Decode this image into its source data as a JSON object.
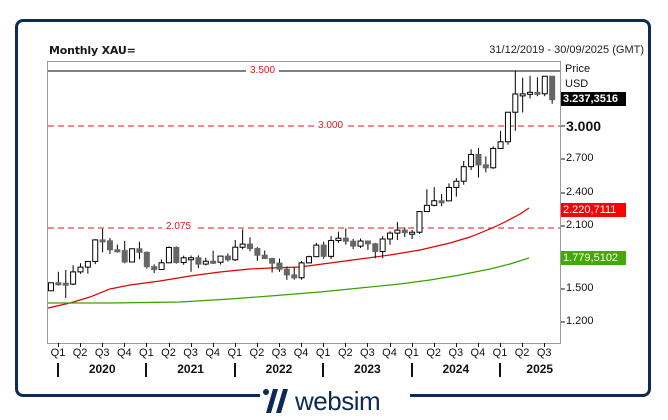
{
  "header": {
    "title": "Monthly XAU=",
    "date_range": "31/12/2019 - 30/09/2025 (GMT)"
  },
  "yaxis": {
    "title_line1": "Price",
    "title_line2": "USD",
    "ticks": [
      "3.000",
      "2.700",
      "2.400",
      "2.100",
      "1.500",
      "1.200"
    ]
  },
  "tags": {
    "last_price": "3.237,3516",
    "ma_red": "2.220,7111",
    "ma_green": "1.779,5102"
  },
  "reference_lines": {
    "l3500": "3.500",
    "l3000": "3.000",
    "l2075": "2.075"
  },
  "xaxis": {
    "quarters": [
      "Q1",
      "Q2",
      "Q3",
      "Q4",
      "Q1",
      "Q2",
      "Q3",
      "Q4",
      "Q1",
      "Q2",
      "Q3",
      "Q4",
      "Q1",
      "Q2",
      "Q3",
      "Q4",
      "Q1",
      "Q2",
      "Q3",
      "Q4",
      "Q1",
      "Q2",
      "Q3"
    ],
    "years": [
      "2020",
      "2021",
      "2022",
      "2023",
      "2024",
      "2025"
    ]
  },
  "colors": {
    "frame": "#0b2a55",
    "ref_red": "#e8141c",
    "ma_red": "#e00000",
    "ma_green": "#3aa000",
    "tag_black": "#000000",
    "tag_red": "#ff0000",
    "tag_green": "#44aa00",
    "bear_candle": "#666666"
  },
  "footer": {
    "brand": "websim"
  },
  "chart_data": {
    "type": "candlestick",
    "title": "Monthly XAU=",
    "subtitle": "31/12/2019 - 30/09/2025 (GMT)",
    "xlabel": "",
    "ylabel": "Price USD",
    "ylim": [
      1000,
      3600
    ],
    "yticks": [
      1200,
      1500,
      2100,
      2400,
      2700,
      3000
    ],
    "horizontal_lines": [
      {
        "value": 3500,
        "label": "3.500",
        "style": "solid",
        "color": "#000000"
      },
      {
        "value": 3000,
        "label": "3.000",
        "style": "dashed",
        "color": "#e8141c"
      },
      {
        "value": 2075,
        "label": "2.075",
        "style": "dashed",
        "color": "#e8141c"
      }
    ],
    "last_values": {
      "price": 3237.3516,
      "ma_red": 2220.7111,
      "ma_green": 1779.5102
    },
    "categories": [
      "2020-01",
      "2020-02",
      "2020-03",
      "2020-04",
      "2020-05",
      "2020-06",
      "2020-07",
      "2020-08",
      "2020-09",
      "2020-10",
      "2020-11",
      "2020-12",
      "2021-01",
      "2021-02",
      "2021-03",
      "2021-04",
      "2021-05",
      "2021-06",
      "2021-07",
      "2021-08",
      "2021-09",
      "2021-10",
      "2021-11",
      "2021-12",
      "2022-01",
      "2022-02",
      "2022-03",
      "2022-04",
      "2022-05",
      "2022-06",
      "2022-07",
      "2022-08",
      "2022-09",
      "2022-10",
      "2022-11",
      "2022-12",
      "2023-01",
      "2023-02",
      "2023-03",
      "2023-04",
      "2023-05",
      "2023-06",
      "2023-07",
      "2023-08",
      "2023-09",
      "2023-10",
      "2023-11",
      "2023-12",
      "2024-01",
      "2024-02",
      "2024-03",
      "2024-04",
      "2024-05",
      "2024-06",
      "2024-07",
      "2024-08",
      "2024-09",
      "2024-10",
      "2024-11",
      "2024-12",
      "2025-01",
      "2025-02",
      "2025-03",
      "2025-04",
      "2025-05",
      "2025-06",
      "2025-07",
      "2025-08",
      "2025-09"
    ],
    "ohlc": [
      [
        1517,
        1591,
        1517,
        1589
      ],
      [
        1589,
        1689,
        1563,
        1585
      ],
      [
        1585,
        1704,
        1451,
        1577
      ],
      [
        1577,
        1747,
        1567,
        1687
      ],
      [
        1687,
        1765,
        1670,
        1730
      ],
      [
        1730,
        1785,
        1671,
        1781
      ],
      [
        1781,
        1981,
        1757,
        1975
      ],
      [
        1975,
        2075,
        1863,
        1967
      ],
      [
        1967,
        1992,
        1848,
        1886
      ],
      [
        1886,
        1933,
        1860,
        1879
      ],
      [
        1879,
        1966,
        1764,
        1776
      ],
      [
        1776,
        1898,
        1775,
        1895
      ],
      [
        1895,
        1959,
        1802,
        1863
      ],
      [
        1863,
        1871,
        1717,
        1734
      ],
      [
        1734,
        1755,
        1677,
        1708
      ],
      [
        1708,
        1798,
        1705,
        1769
      ],
      [
        1769,
        1916,
        1766,
        1907
      ],
      [
        1907,
        1917,
        1761,
        1771
      ],
      [
        1771,
        1833,
        1751,
        1814
      ],
      [
        1814,
        1834,
        1688,
        1814
      ],
      [
        1814,
        1836,
        1721,
        1757
      ],
      [
        1757,
        1814,
        1746,
        1783
      ],
      [
        1783,
        1877,
        1758,
        1774
      ],
      [
        1774,
        1831,
        1753,
        1829
      ],
      [
        1829,
        1853,
        1780,
        1796
      ],
      [
        1796,
        1974,
        1785,
        1909
      ],
      [
        1909,
        2070,
        1890,
        1937
      ],
      [
        1937,
        1998,
        1872,
        1897
      ],
      [
        1897,
        1910,
        1787,
        1837
      ],
      [
        1837,
        1879,
        1805,
        1807
      ],
      [
        1807,
        1814,
        1681,
        1766
      ],
      [
        1766,
        1807,
        1688,
        1711
      ],
      [
        1711,
        1735,
        1615,
        1660
      ],
      [
        1660,
        1730,
        1617,
        1634
      ],
      [
        1634,
        1786,
        1616,
        1768
      ],
      [
        1768,
        1833,
        1765,
        1824
      ],
      [
        1824,
        1949,
        1822,
        1928
      ],
      [
        1928,
        1959,
        1805,
        1827
      ],
      [
        1827,
        2009,
        1804,
        1969
      ],
      [
        1969,
        2049,
        1949,
        1990
      ],
      [
        1990,
        2079,
        1932,
        1963
      ],
      [
        1963,
        1983,
        1893,
        1919
      ],
      [
        1919,
        1987,
        1902,
        1965
      ],
      [
        1965,
        1949,
        1885,
        1940
      ],
      [
        1940,
        1947,
        1810,
        1871
      ],
      [
        1871,
        2009,
        1810,
        1983
      ],
      [
        1983,
        2052,
        1931,
        2036
      ],
      [
        2036,
        2135,
        1973,
        2063
      ],
      [
        2063,
        2088,
        2001,
        2040
      ],
      [
        2040,
        2065,
        1984,
        2044
      ],
      [
        2044,
        2222,
        2030,
        2230
      ],
      [
        2230,
        2431,
        2228,
        2286
      ],
      [
        2286,
        2450,
        2277,
        2327
      ],
      [
        2327,
        2388,
        2277,
        2326
      ],
      [
        2326,
        2484,
        2353,
        2447
      ],
      [
        2447,
        2531,
        2364,
        2503
      ],
      [
        2503,
        2685,
        2472,
        2634
      ],
      [
        2634,
        2790,
        2604,
        2744
      ],
      [
        2744,
        2801,
        2537,
        2650
      ],
      [
        2650,
        2726,
        2583,
        2624
      ],
      [
        2624,
        2817,
        2614,
        2798
      ],
      [
        2798,
        2956,
        2833,
        2858
      ],
      [
        2858,
        3057,
        2832,
        3124
      ],
      [
        3124,
        3500,
        2957,
        3288
      ],
      [
        3288,
        3435,
        3121,
        3289
      ],
      [
        3289,
        3452,
        3247,
        3303
      ],
      [
        3303,
        3439,
        3268,
        3290
      ],
      [
        3290,
        3450,
        3268,
        3448
      ],
      [
        3448,
        3440,
        3200,
        3237
      ]
    ],
    "series": [
      {
        "name": "MA (red)",
        "color": "#e00000",
        "values_note": "Rises from ~1470 (Jan 2020) to 2220.71 (latest)"
      },
      {
        "name": "MA (green)",
        "color": "#3aa000",
        "values_note": "Rises from ~1480 (Jan 2020) to 1779.51 (latest)"
      }
    ],
    "grid": false,
    "legend": "none"
  }
}
